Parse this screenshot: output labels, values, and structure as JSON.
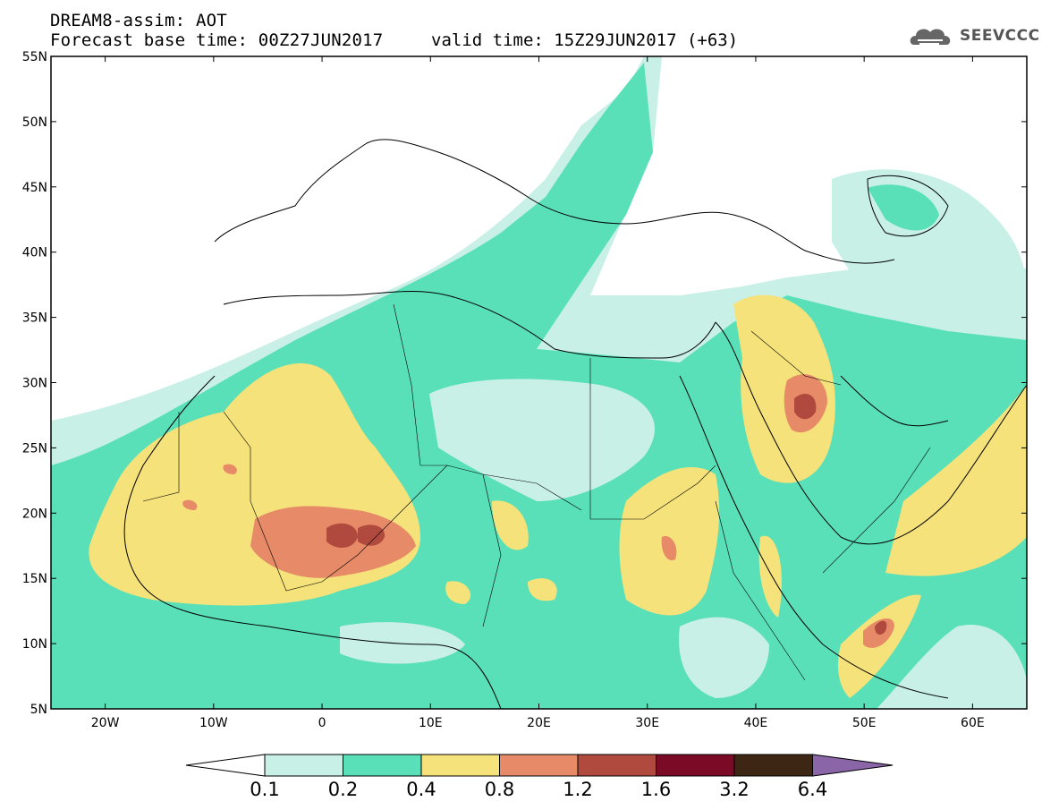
{
  "header": {
    "title": "DREAM8-assim: AOT",
    "base_time": "Forecast base time: 00Z27JUN2017",
    "valid_time": "valid time: 15Z29JUN2017 (+63)"
  },
  "logo": {
    "text": "SEEVCCC",
    "icon": "cloud-icon"
  },
  "map": {
    "lon_range": [
      -25,
      65
    ],
    "lat_range": [
      5,
      55
    ],
    "lat_ticks": [
      {
        "value": 55,
        "label": "55N"
      },
      {
        "value": 50,
        "label": "50N"
      },
      {
        "value": 45,
        "label": "45N"
      },
      {
        "value": 40,
        "label": "40N"
      },
      {
        "value": 35,
        "label": "35N"
      },
      {
        "value": 30,
        "label": "30N"
      },
      {
        "value": 25,
        "label": "25N"
      },
      {
        "value": 20,
        "label": "20N"
      },
      {
        "value": 15,
        "label": "15N"
      },
      {
        "value": 10,
        "label": "10N"
      },
      {
        "value": 5,
        "label": "5N"
      }
    ],
    "lon_ticks": [
      {
        "value": -20,
        "label": "20W"
      },
      {
        "value": -10,
        "label": "10W"
      },
      {
        "value": 0,
        "label": "0"
      },
      {
        "value": 10,
        "label": "10E"
      },
      {
        "value": 20,
        "label": "20E"
      },
      {
        "value": 30,
        "label": "30E"
      },
      {
        "value": 40,
        "label": "40E"
      },
      {
        "value": 50,
        "label": "50E"
      },
      {
        "value": 60,
        "label": "60E"
      }
    ]
  },
  "colorbar": {
    "colors": [
      "#ffffff",
      "#c8f0e6",
      "#5ae0b8",
      "#f5e27a",
      "#e68a68",
      "#b04a3e",
      "#7a0a26",
      "#3d2714",
      "#8a66a8"
    ],
    "labels": [
      "0.1",
      "0.2",
      "0.4",
      "0.8",
      "1.2",
      "1.6",
      "3.2",
      "6.4"
    ]
  }
}
